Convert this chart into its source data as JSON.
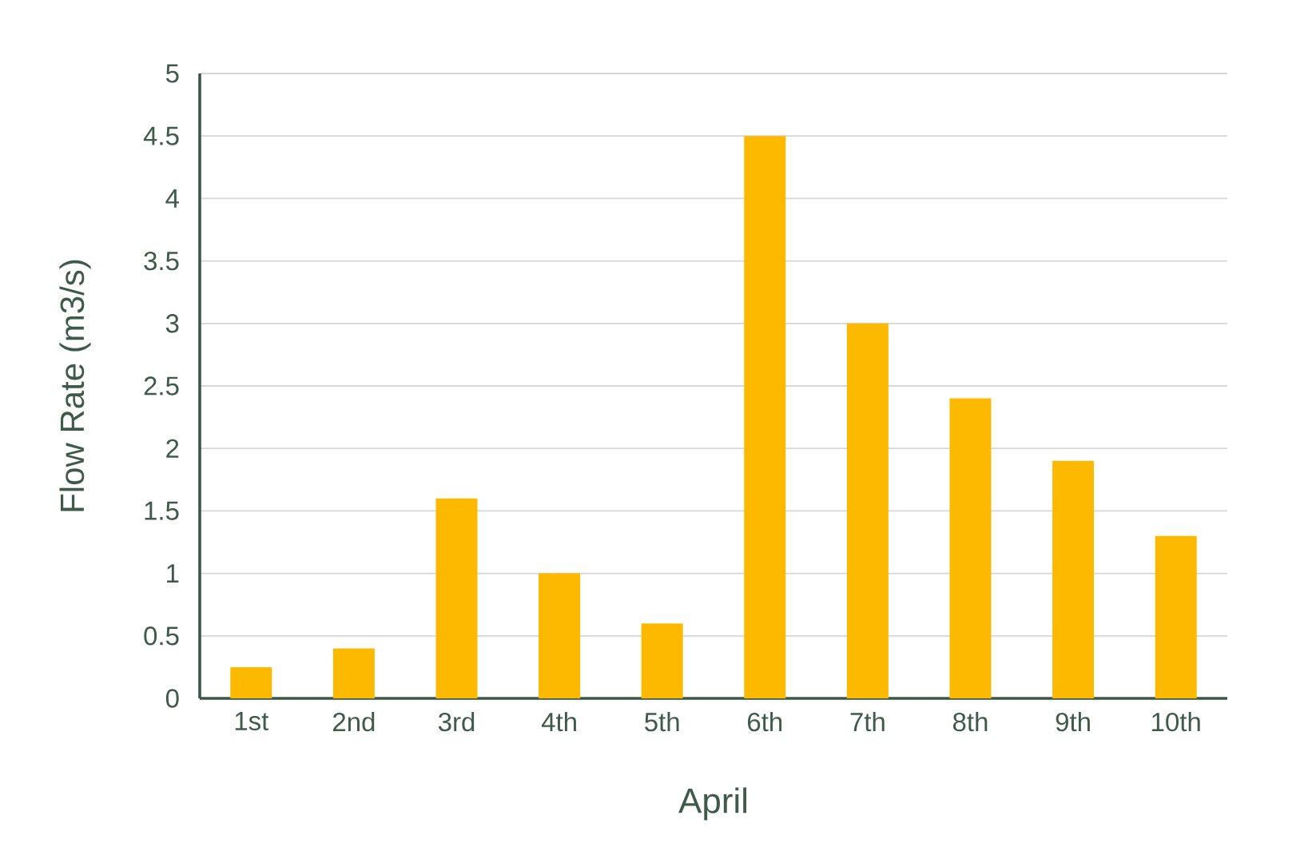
{
  "chart_data": {
    "type": "bar",
    "xlabel": "April",
    "ylabel": "Flow Rate (m3/s)",
    "categories": [
      "1st",
      "2nd",
      "3rd",
      "4th",
      "5th",
      "6th",
      "7th",
      "8th",
      "9th",
      "10th"
    ],
    "values": [
      0.25,
      0.4,
      1.6,
      1.0,
      0.6,
      4.5,
      3.0,
      2.4,
      1.9,
      1.3
    ],
    "color": "#fcb900",
    "ylim": [
      0,
      5
    ],
    "yticks": [
      0,
      0.5,
      1,
      1.5,
      2,
      2.5,
      3,
      3.5,
      4,
      4.5,
      5
    ],
    "grid": "y"
  }
}
